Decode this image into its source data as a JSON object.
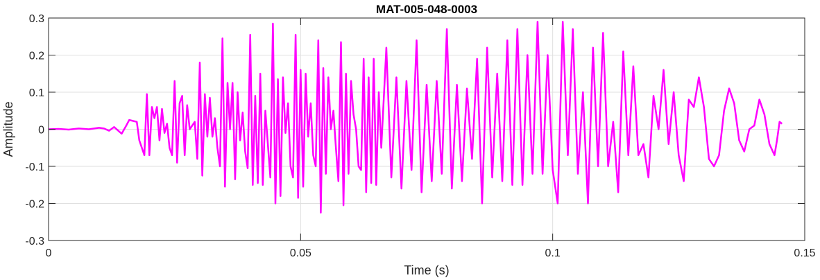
{
  "chart_data": {
    "type": "line",
    "title": "MAT-005-048-0003",
    "xlabel": "Time (s)",
    "ylabel": "Amplitude",
    "xlim": [
      0,
      0.15
    ],
    "ylim": [
      -0.3,
      0.3
    ],
    "xticks": [
      "0",
      "0.05",
      "0.1",
      "0.15"
    ],
    "xtick_values": [
      0,
      0.05,
      0.1,
      0.15
    ],
    "yticks": [
      "-0.3",
      "-0.2",
      "-0.1",
      "0",
      "0.1",
      "0.2",
      "0.3"
    ],
    "ytick_values": [
      -0.3,
      -0.2,
      -0.1,
      0,
      0.1,
      0.2,
      0.3
    ],
    "grid": true,
    "line_color": "#ff00ff",
    "series": [
      {
        "x": [
          0,
          0.002,
          0.004,
          0.006,
          0.008,
          0.01,
          0.011,
          0.012,
          0.013,
          0.0145,
          0.0155,
          0.016,
          0.0175,
          0.018,
          0.019,
          0.0195,
          0.02,
          0.0205,
          0.021,
          0.0215,
          0.022,
          0.0225,
          0.023,
          0.0235,
          0.024,
          0.0245,
          0.025,
          0.0255,
          0.026,
          0.0265,
          0.027,
          0.0275,
          0.028,
          0.029,
          0.0295,
          0.03,
          0.0305,
          0.031,
          0.0315,
          0.032,
          0.0325,
          0.033,
          0.0335,
          0.034,
          0.0345,
          0.035,
          0.0355,
          0.036,
          0.0365,
          0.037,
          0.0375,
          0.038,
          0.0385,
          0.039,
          0.0395,
          0.04,
          0.0405,
          0.041,
          0.0415,
          0.042,
          0.0425,
          0.043,
          0.0435,
          0.044,
          0.0445,
          0.045,
          0.0455,
          0.046,
          0.0465,
          0.047,
          0.0475,
          0.048,
          0.0485,
          0.049,
          0.0495,
          0.05,
          0.0505,
          0.051,
          0.0515,
          0.052,
          0.0525,
          0.053,
          0.0535,
          0.054,
          0.0545,
          0.055,
          0.0555,
          0.056,
          0.0565,
          0.057,
          0.0575,
          0.058,
          0.0585,
          0.059,
          0.0595,
          0.06,
          0.0605,
          0.061,
          0.0615,
          0.062,
          0.0625,
          0.063,
          0.0635,
          0.064,
          0.0645,
          0.065,
          0.0655,
          0.066,
          0.067,
          0.068,
          0.069,
          0.07,
          0.071,
          0.072,
          0.073,
          0.074,
          0.075,
          0.076,
          0.077,
          0.078,
          0.079,
          0.08,
          0.081,
          0.082,
          0.083,
          0.084,
          0.085,
          0.086,
          0.087,
          0.088,
          0.089,
          0.09,
          0.091,
          0.092,
          0.093,
          0.094,
          0.095,
          0.096,
          0.097,
          0.098,
          0.099,
          0.1,
          0.101,
          0.102,
          0.103,
          0.104,
          0.105,
          0.106,
          0.107,
          0.108,
          0.109,
          0.11,
          0.111,
          0.112,
          0.113,
          0.114,
          0.115,
          0.116,
          0.117,
          0.118,
          0.119,
          0.12,
          0.121,
          0.122,
          0.123,
          0.124,
          0.125,
          0.126,
          0.127,
          0.128,
          0.129,
          0.13,
          0.131,
          0.132,
          0.133,
          0.134,
          0.135,
          0.136,
          0.137,
          0.138,
          0.139,
          0.14,
          0.141,
          0.142,
          0.143,
          0.144,
          0.1445,
          0.145,
          0.1455
        ],
        "y": [
          0,
          0.001,
          -0.001,
          0.002,
          0,
          0.004,
          0.002,
          -0.004,
          0.006,
          -0.012,
          0.012,
          0.025,
          0.02,
          -0.03,
          -0.07,
          0.095,
          -0.07,
          0.06,
          0.03,
          0.06,
          -0.03,
          0.055,
          -0.01,
          0.015,
          -0.05,
          -0.07,
          0.13,
          -0.09,
          0.07,
          0.09,
          -0.07,
          0.065,
          0.0,
          0.02,
          -0.08,
          0.18,
          -0.125,
          0.095,
          -0.02,
          0.085,
          -0.02,
          0.03,
          -0.05,
          -0.1,
          0.245,
          -0.155,
          0.125,
          0.0,
          0.125,
          -0.135,
          0.1,
          -0.03,
          0.045,
          -0.06,
          -0.105,
          0.255,
          -0.15,
          0.09,
          -0.145,
          0.15,
          -0.15,
          0.05,
          -0.04,
          -0.13,
          0.285,
          -0.2,
          0.135,
          -0.18,
          0.14,
          -0.01,
          0.07,
          -0.1,
          -0.13,
          0.255,
          -0.185,
          0.16,
          -0.155,
          0.15,
          -0.02,
          0.07,
          -0.07,
          -0.1,
          0.24,
          -0.225,
          0.165,
          -0.12,
          0.14,
          0.0,
          0.05,
          -0.05,
          -0.14,
          0.235,
          -0.205,
          0.15,
          -0.12,
          0.13,
          0.04,
          0.0,
          -0.1,
          -0.11,
          0.19,
          -0.17,
          0.14,
          -0.145,
          0.19,
          -0.15,
          0.1,
          -0.05,
          0.22,
          -0.13,
          0.14,
          -0.16,
          0.13,
          -0.11,
          0.24,
          -0.17,
          0.12,
          -0.14,
          0.13,
          -0.12,
          0.27,
          -0.16,
          0.12,
          -0.14,
          0.11,
          -0.08,
          0.19,
          -0.2,
          0.22,
          -0.13,
          0.15,
          -0.14,
          0.24,
          -0.15,
          0.27,
          -0.15,
          0.2,
          -0.12,
          0.29,
          -0.12,
          0.2,
          -0.11,
          -0.2,
          0.29,
          -0.07,
          0.27,
          -0.12,
          0.1,
          -0.2,
          0.22,
          -0.1,
          0.26,
          -0.1,
          0.02,
          -0.17,
          0.21,
          -0.07,
          0.17,
          -0.07,
          -0.04,
          -0.13,
          0.09,
          0.0,
          0.16,
          -0.04,
          0.1,
          -0.07,
          -0.14,
          0.08,
          0.06,
          0.14,
          0.06,
          -0.08,
          -0.1,
          -0.07,
          0.05,
          0.11,
          0.07,
          -0.03,
          -0.06,
          0.0,
          0.01,
          0.08,
          0.04,
          -0.04,
          -0.07,
          -0.03,
          0.02,
          0.015
        ]
      }
    ]
  }
}
